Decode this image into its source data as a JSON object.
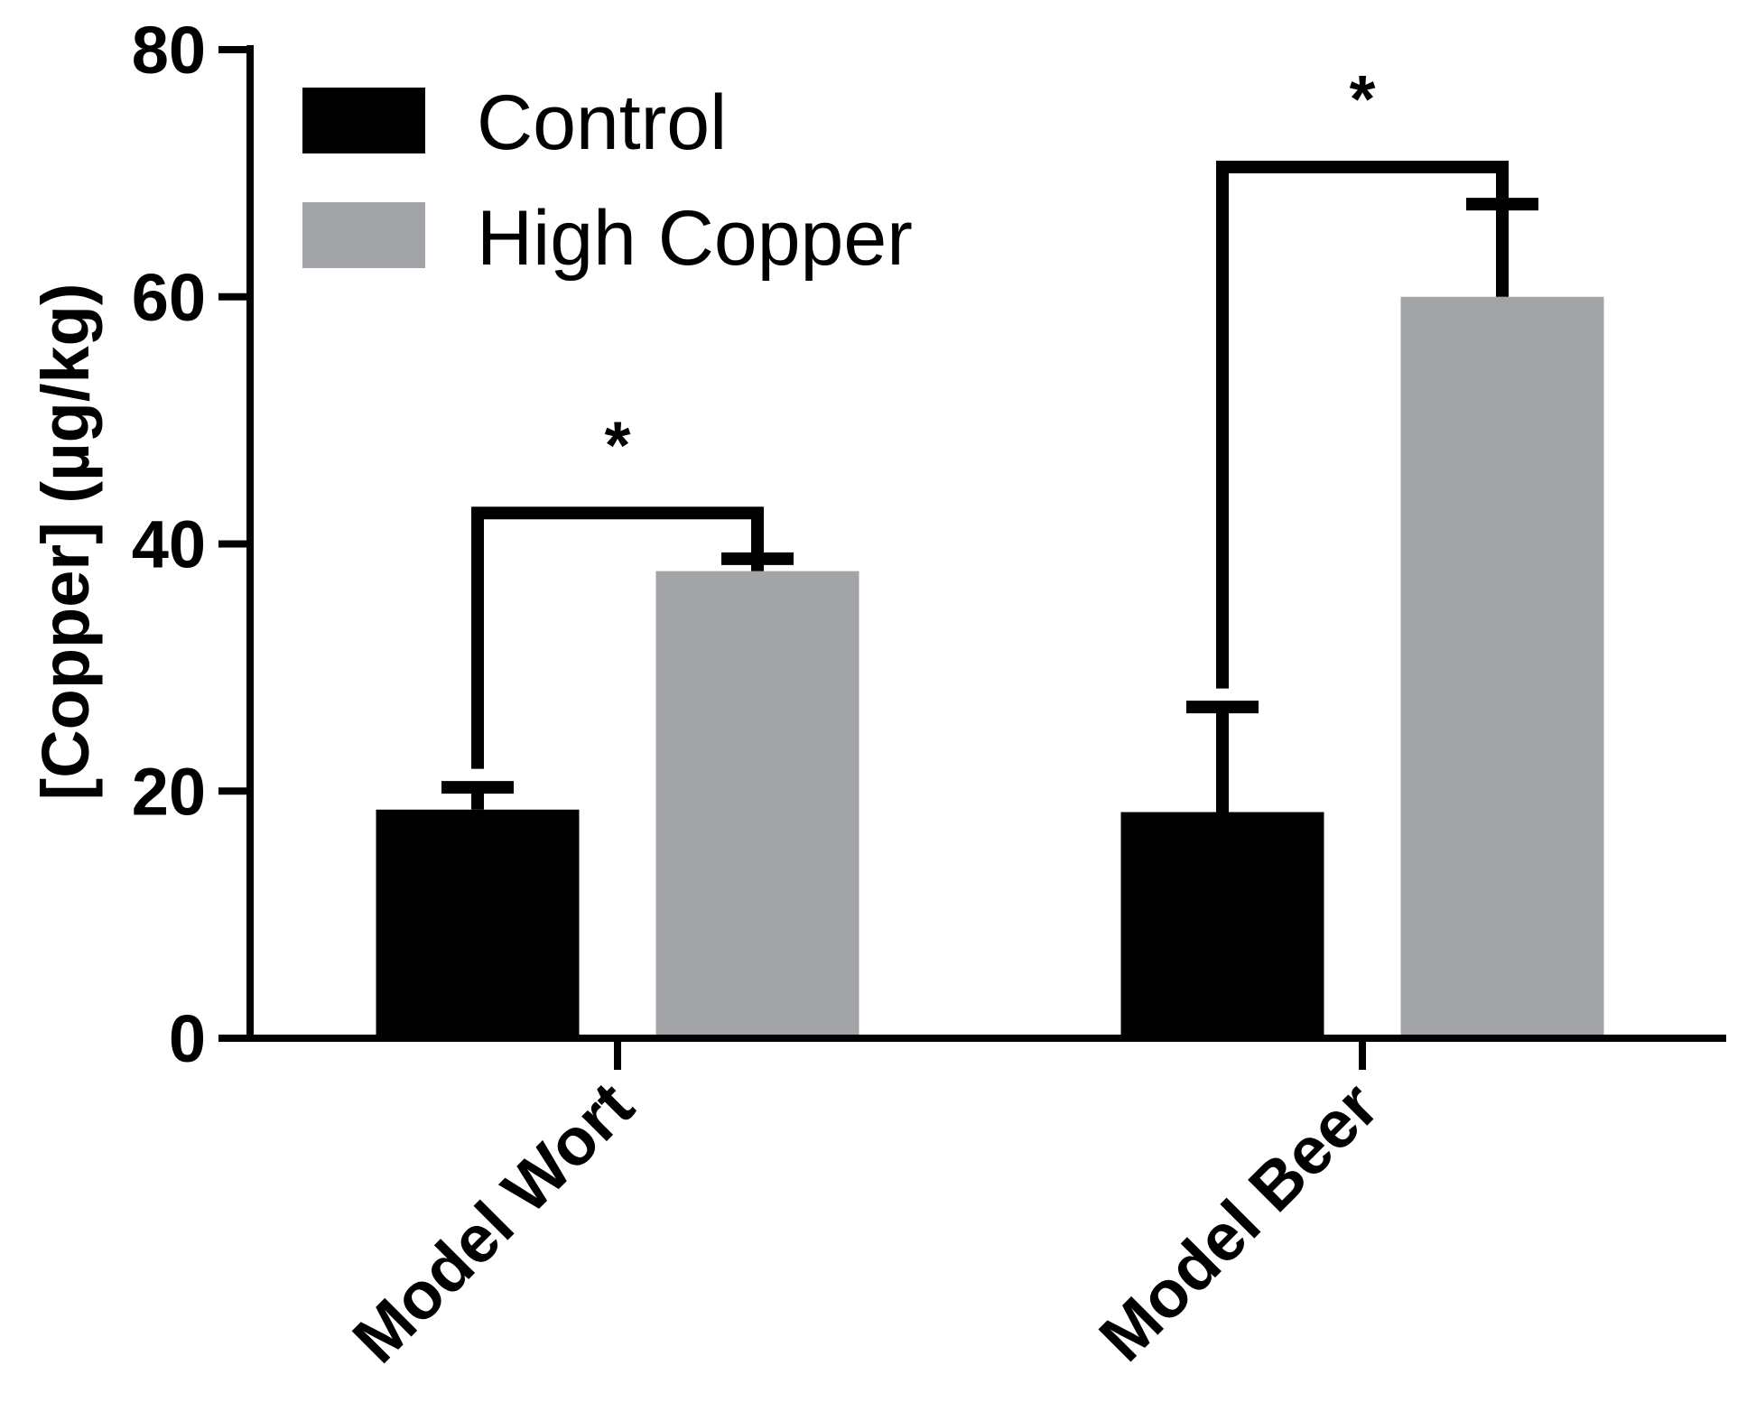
{
  "chart_data": {
    "type": "bar",
    "title": "",
    "xlabel": "",
    "ylabel": "[Copper] (µg/kg)",
    "ylim": [
      0,
      80
    ],
    "yticks": [
      0,
      20,
      40,
      60,
      80
    ],
    "grid": false,
    "legend_position": "top-left",
    "categories": [
      "Model Wort",
      "Model Beer"
    ],
    "series": [
      {
        "name": "Control",
        "color": "#000000",
        "values": [
          18.5,
          18.3
        ],
        "errors": [
          1.8,
          8.5
        ]
      },
      {
        "name": "High Copper",
        "color": "#a3a4a7",
        "values": [
          37.8,
          60.0
        ],
        "errors": [
          1.0,
          7.5
        ]
      }
    ],
    "significance": [
      {
        "category": "Model Wort",
        "label": "*",
        "bracket_y": 42.5
      },
      {
        "category": "Model Beer",
        "label": "*",
        "bracket_y": 70.5
      }
    ]
  }
}
